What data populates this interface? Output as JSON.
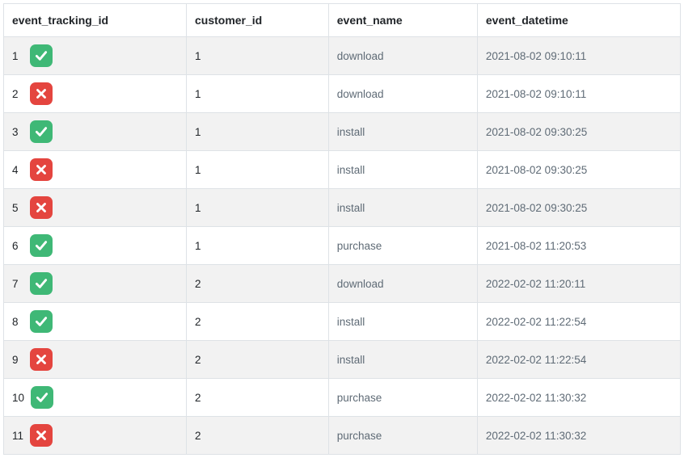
{
  "table": {
    "columns": [
      "event_tracking_id",
      "customer_id",
      "event_name",
      "event_datetime"
    ],
    "status_icons": {
      "ok": {
        "bg": "#3fb876",
        "stroke": "#ffffff"
      },
      "no": {
        "bg": "#e4453f",
        "stroke": "#ffffff"
      }
    },
    "row_colors": {
      "odd": "#f2f2f2",
      "even": "#ffffff",
      "border": "#dee2e6"
    },
    "rows": [
      {
        "id": 1,
        "status": "ok",
        "customer_id": 1,
        "event_name": "download",
        "event_datetime": "2021-08-02 09:10:11"
      },
      {
        "id": 2,
        "status": "no",
        "customer_id": 1,
        "event_name": "download",
        "event_datetime": "2021-08-02 09:10:11"
      },
      {
        "id": 3,
        "status": "ok",
        "customer_id": 1,
        "event_name": "install",
        "event_datetime": "2021-08-02 09:30:25"
      },
      {
        "id": 4,
        "status": "no",
        "customer_id": 1,
        "event_name": "install",
        "event_datetime": "2021-08-02 09:30:25"
      },
      {
        "id": 5,
        "status": "no",
        "customer_id": 1,
        "event_name": "install",
        "event_datetime": "2021-08-02 09:30:25"
      },
      {
        "id": 6,
        "status": "ok",
        "customer_id": 1,
        "event_name": "purchase",
        "event_datetime": "2021-08-02 11:20:53"
      },
      {
        "id": 7,
        "status": "ok",
        "customer_id": 2,
        "event_name": "download",
        "event_datetime": "2022-02-02 11:20:11"
      },
      {
        "id": 8,
        "status": "ok",
        "customer_id": 2,
        "event_name": "install",
        "event_datetime": "2022-02-02 11:22:54"
      },
      {
        "id": 9,
        "status": "no",
        "customer_id": 2,
        "event_name": "install",
        "event_datetime": "2022-02-02 11:22:54"
      },
      {
        "id": 10,
        "status": "ok",
        "customer_id": 2,
        "event_name": "purchase",
        "event_datetime": "2022-02-02 11:30:32"
      },
      {
        "id": 11,
        "status": "no",
        "customer_id": 2,
        "event_name": "purchase",
        "event_datetime": "2022-02-02 11:30:32"
      }
    ]
  }
}
